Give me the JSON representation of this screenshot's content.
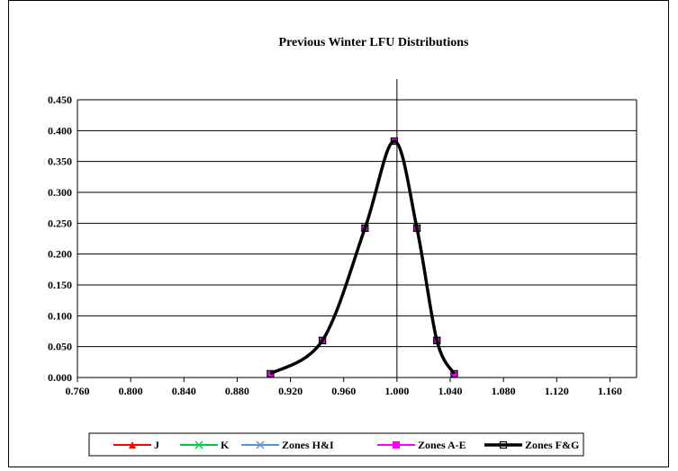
{
  "chart_data": {
    "type": "line",
    "title": "Previous Winter LFU Distributions",
    "xlabel": "",
    "ylabel": "",
    "xlim": [
      0.76,
      1.18
    ],
    "ylim": [
      0,
      0.45
    ],
    "x_ticks": [
      "0.760",
      "0.800",
      "0.840",
      "0.880",
      "0.920",
      "0.960",
      "1.000",
      "1.040",
      "1.080",
      "1.120",
      "1.160"
    ],
    "y_ticks": [
      "0.000",
      "0.050",
      "0.100",
      "0.150",
      "0.200",
      "0.250",
      "0.300",
      "0.350",
      "0.400",
      "0.450"
    ],
    "grid": "horizontal",
    "legend_position": "bottom",
    "x": [
      0.905,
      0.944,
      0.976,
      0.998,
      1.015,
      1.03,
      1.043
    ],
    "series": [
      {
        "name": "J",
        "color": "#ff0000",
        "marker": "triangle",
        "values": [
          0.006,
          0.06,
          0.242,
          0.383,
          0.242,
          0.06,
          0.006
        ]
      },
      {
        "name": "K",
        "color": "#00cc44",
        "marker": "x",
        "values": [
          0.006,
          0.06,
          0.242,
          0.383,
          0.242,
          0.06,
          0.006
        ]
      },
      {
        "name": "Zones H&I",
        "color": "#5b8fd6",
        "marker": "x",
        "values": [
          0.006,
          0.06,
          0.242,
          0.383,
          0.242,
          0.06,
          0.006
        ]
      },
      {
        "name": "Zones A-E",
        "color": "#ff00ff",
        "marker": "square",
        "values": [
          0.006,
          0.06,
          0.242,
          0.383,
          0.242,
          0.06,
          0.006
        ]
      },
      {
        "name": "Zones F&G",
        "color": "#000000",
        "marker": "open-square",
        "values": [
          0.006,
          0.06,
          0.242,
          0.383,
          0.242,
          0.06,
          0.006
        ]
      }
    ]
  }
}
